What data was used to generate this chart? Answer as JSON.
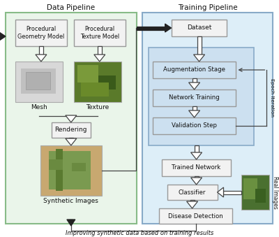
{
  "bg_color": "#ffffff",
  "data_pipeline_bg": "#eaf5ea",
  "data_pipeline_border": "#88bb88",
  "training_pipeline_bg": "#ddeef8",
  "training_pipeline_border": "#88aac8",
  "epoch_box_bg": "#cce0f0",
  "epoch_box_border": "#88aac8",
  "box_bg": "#f2f2f2",
  "box_border": "#999999",
  "data_pipeline_label": "Data Pipeline",
  "training_pipeline_label": "Training Pipeline",
  "bottom_label": "Improving synthetic data based on training results",
  "epoch_label": "Epoch Iteration",
  "real_images_label": "Real Images"
}
